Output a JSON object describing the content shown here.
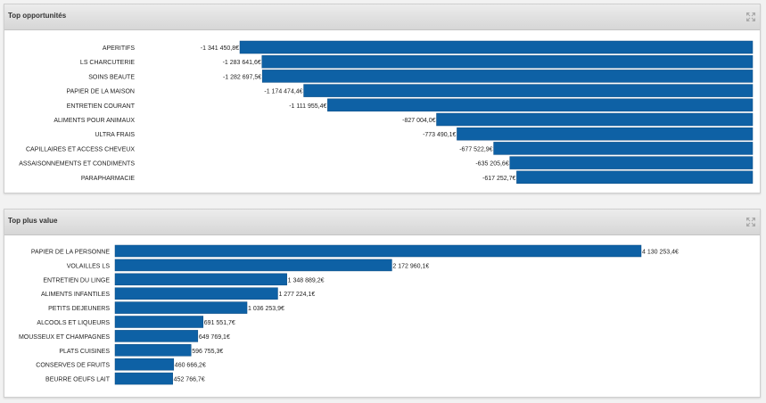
{
  "colors": {
    "bar": "#0e61a5",
    "bar_edge": "#0a4b82",
    "header_bg": "#dcdcdc",
    "page_bg": "#f2f2f2"
  },
  "icons": {
    "expand": "expand-arrows-icon"
  },
  "panels": [
    {
      "title": "Top opportunités",
      "expand_icon": "expand-arrows-icon"
    },
    {
      "title": "Top plus value",
      "expand_icon": "expand-arrows-icon"
    }
  ],
  "chart_data": [
    {
      "type": "bar",
      "orientation": "horizontal",
      "title": "Top opportunités",
      "categories": [
        "APERITIFS",
        "LS CHARCUTERIE",
        "SOINS BEAUTE",
        "PAPIER DE LA MAISON",
        "ENTRETIEN COURANT",
        "ALIMENTS POUR ANIMAUX",
        "ULTRA FRAIS",
        "CAPILLAIRES ET ACCESS CHEVEUX",
        "ASSAISONNEMENTS ET CONDIMENTS",
        "PARAPHARMACIE"
      ],
      "values": [
        -1341450.8,
        -1283641.6,
        -1282697.5,
        -1174474.4,
        -1111955.4,
        -827004.0,
        -773490.1,
        -677522.9,
        -635205.6,
        -617252.7
      ],
      "labels": [
        "-1 341 450,8€",
        "-1 283 641,6€",
        "-1 282 697,5€",
        "-1 174 474,4€",
        "-1 111 955,4€",
        "-827 004,0€",
        "-773 490,1€",
        "-677 522,9€",
        "-635 205,6€",
        "-617 252,7€"
      ],
      "xlim": [
        -1341450.8,
        0
      ],
      "grid": false,
      "legend": "none"
    },
    {
      "type": "bar",
      "orientation": "horizontal",
      "title": "Top plus value",
      "categories": [
        "PAPIER DE LA PERSONNE",
        "VOLAILLES LS",
        "ENTRETIEN DU LINGE",
        "ALIMENTS INFANTILES",
        "PETITS DEJEUNERS",
        "ALCOOLS ET LIQUEURS",
        "MOUSSEUX ET CHAMPAGNES",
        "PLATS CUISINES",
        "CONSERVES DE FRUITS",
        "BEURRE OEUFS LAIT"
      ],
      "values": [
        4130253.4,
        2172960.1,
        1348889.2,
        1277224.1,
        1036253.9,
        691551.7,
        649769.1,
        596755.3,
        460666.2,
        452766.7
      ],
      "labels": [
        "4 130 253,4€",
        "2 172 960,1€",
        "1 348 889,2€",
        "1 277 224,1€",
        "1 036 253,9€",
        "691 551,7€",
        "649 769,1€",
        "596 755,3€",
        "460 666,2€",
        "452 766,7€"
      ],
      "xlim": [
        0,
        4130253.4
      ],
      "grid": false,
      "legend": "none"
    }
  ]
}
